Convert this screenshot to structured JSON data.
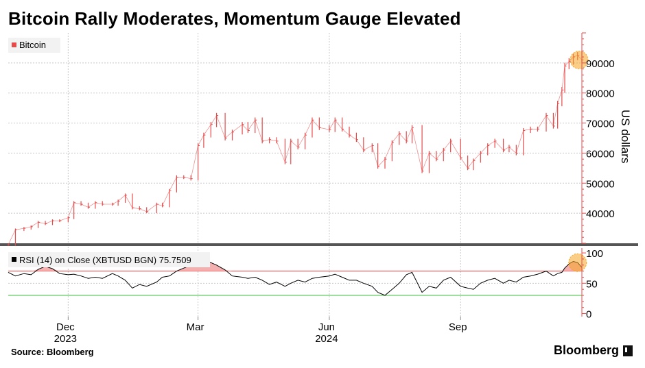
{
  "title": "Bitcoin Rally Moderates, Momentum Gauge Elevated",
  "source": "Source: Bloomberg",
  "brand": "Bloomberg",
  "colors": {
    "price_up": "#e64a4a",
    "rsi_line": "#000000",
    "overbought_line": "#e03c3c",
    "oversold_line": "#3cbf3c",
    "rsi_fill": "#f2b0b0",
    "highlight": "#f5a623"
  },
  "chart_data": [
    {
      "type": "line",
      "legend": "Bitcoin",
      "ylabel": "US dollars",
      "yticks": [
        40000,
        50000,
        60000,
        70000,
        80000,
        90000
      ],
      "ylim": [
        30000,
        100000
      ],
      "xticks": [
        {
          "label": "Dec",
          "sub": "2023",
          "date": "2023-12-01"
        },
        {
          "label": "Mar",
          "sub": "",
          "date": "2024-03-01"
        },
        {
          "label": "Jun",
          "sub": "2024",
          "date": "2024-06-01"
        },
        {
          "label": "Sep",
          "sub": "",
          "date": "2024-09-01"
        }
      ],
      "xlim": [
        "2023-10-20",
        "2024-11-25"
      ],
      "series": [
        {
          "name": "Bitcoin",
          "x": [
            "2023-10-20",
            "2023-10-25",
            "2023-10-31",
            "2023-11-05",
            "2023-11-10",
            "2023-11-15",
            "2023-11-20",
            "2023-11-25",
            "2023-12-01",
            "2023-12-05",
            "2023-12-10",
            "2023-12-15",
            "2023-12-20",
            "2023-12-25",
            "2024-01-01",
            "2024-01-05",
            "2024-01-10",
            "2024-01-15",
            "2024-01-20",
            "2024-01-25",
            "2024-02-01",
            "2024-02-05",
            "2024-02-10",
            "2024-02-15",
            "2024-02-20",
            "2024-02-25",
            "2024-03-01",
            "2024-03-05",
            "2024-03-10",
            "2024-03-14",
            "2024-03-20",
            "2024-03-25",
            "2024-04-01",
            "2024-04-05",
            "2024-04-10",
            "2024-04-15",
            "2024-04-20",
            "2024-04-25",
            "2024-05-01",
            "2024-05-05",
            "2024-05-10",
            "2024-05-15",
            "2024-05-20",
            "2024-05-25",
            "2024-06-01",
            "2024-06-05",
            "2024-06-10",
            "2024-06-15",
            "2024-06-20",
            "2024-06-25",
            "2024-07-01",
            "2024-07-05",
            "2024-07-10",
            "2024-07-15",
            "2024-07-20",
            "2024-07-25",
            "2024-07-29",
            "2024-08-05",
            "2024-08-10",
            "2024-08-15",
            "2024-08-20",
            "2024-08-25",
            "2024-09-01",
            "2024-09-06",
            "2024-09-10",
            "2024-09-15",
            "2024-09-20",
            "2024-09-25",
            "2024-10-01",
            "2024-10-05",
            "2024-10-10",
            "2024-10-15",
            "2024-10-20",
            "2024-10-25",
            "2024-10-31",
            "2024-11-05",
            "2024-11-08",
            "2024-11-11",
            "2024-11-13",
            "2024-11-16",
            "2024-11-19",
            "2024-11-22",
            "2024-11-25"
          ],
          "values": [
            29500,
            34500,
            35000,
            35500,
            37000,
            36500,
            37500,
            37500,
            38500,
            43500,
            43000,
            42000,
            43500,
            43000,
            43000,
            44000,
            46000,
            41800,
            41500,
            40500,
            43000,
            42500,
            47500,
            52000,
            52000,
            51500,
            62500,
            66000,
            69500,
            72500,
            65000,
            67000,
            69500,
            67500,
            71000,
            64000,
            64500,
            64000,
            57000,
            64000,
            62000,
            66000,
            71000,
            68500,
            67800,
            71000,
            68000,
            66000,
            64500,
            61000,
            62500,
            55500,
            58000,
            63500,
            66500,
            64000,
            68500,
            54000,
            60000,
            58000,
            61000,
            64000,
            58500,
            55000,
            57500,
            60000,
            62500,
            64000,
            61000,
            62000,
            60000,
            67500,
            68000,
            68000,
            72500,
            69000,
            76500,
            81000,
            89000,
            90500,
            92000,
            92500,
            91000
          ]
        }
      ]
    },
    {
      "type": "line",
      "legend": "RSI (14)  on Close (XBTUSD BGN) 75.7509",
      "yticks": [
        0,
        50,
        100
      ],
      "ylim": [
        -5,
        108
      ],
      "reference_lines": [
        70,
        30
      ],
      "series": [
        {
          "name": "RSI (14)",
          "x": [
            "2023-10-20",
            "2023-10-25",
            "2023-10-31",
            "2023-11-05",
            "2023-11-10",
            "2023-11-15",
            "2023-11-20",
            "2023-11-25",
            "2023-12-01",
            "2023-12-05",
            "2023-12-10",
            "2023-12-15",
            "2023-12-20",
            "2023-12-25",
            "2024-01-01",
            "2024-01-05",
            "2024-01-10",
            "2024-01-15",
            "2024-01-20",
            "2024-01-25",
            "2024-02-01",
            "2024-02-05",
            "2024-02-10",
            "2024-02-15",
            "2024-02-20",
            "2024-02-25",
            "2024-03-01",
            "2024-03-05",
            "2024-03-10",
            "2024-03-14",
            "2024-03-20",
            "2024-03-25",
            "2024-04-01",
            "2024-04-05",
            "2024-04-10",
            "2024-04-15",
            "2024-04-20",
            "2024-04-25",
            "2024-05-01",
            "2024-05-05",
            "2024-05-10",
            "2024-05-15",
            "2024-05-20",
            "2024-05-25",
            "2024-06-01",
            "2024-06-05",
            "2024-06-10",
            "2024-06-15",
            "2024-06-20",
            "2024-06-25",
            "2024-07-01",
            "2024-07-05",
            "2024-07-10",
            "2024-07-15",
            "2024-07-20",
            "2024-07-25",
            "2024-07-29",
            "2024-08-05",
            "2024-08-10",
            "2024-08-15",
            "2024-08-20",
            "2024-08-25",
            "2024-09-01",
            "2024-09-06",
            "2024-09-10",
            "2024-09-15",
            "2024-09-20",
            "2024-09-25",
            "2024-10-01",
            "2024-10-05",
            "2024-10-10",
            "2024-10-15",
            "2024-10-20",
            "2024-10-25",
            "2024-10-31",
            "2024-11-05",
            "2024-11-08",
            "2024-11-11",
            "2024-11-13",
            "2024-11-16",
            "2024-11-19",
            "2024-11-22",
            "2024-11-25"
          ],
          "values": [
            68,
            62,
            66,
            64,
            73,
            78,
            74,
            66,
            64,
            65,
            62,
            58,
            60,
            58,
            66,
            62,
            55,
            42,
            48,
            45,
            52,
            60,
            62,
            70,
            75,
            80,
            82,
            84,
            84,
            80,
            72,
            62,
            60,
            58,
            60,
            55,
            48,
            52,
            45,
            50,
            55,
            52,
            58,
            60,
            62,
            65,
            60,
            55,
            55,
            50,
            45,
            35,
            30,
            40,
            50,
            64,
            68,
            35,
            45,
            42,
            55,
            60,
            45,
            42,
            40,
            50,
            55,
            58,
            50,
            55,
            52,
            60,
            62,
            65,
            70,
            62,
            66,
            68,
            75,
            82,
            86,
            84,
            76
          ]
        }
      ]
    }
  ]
}
